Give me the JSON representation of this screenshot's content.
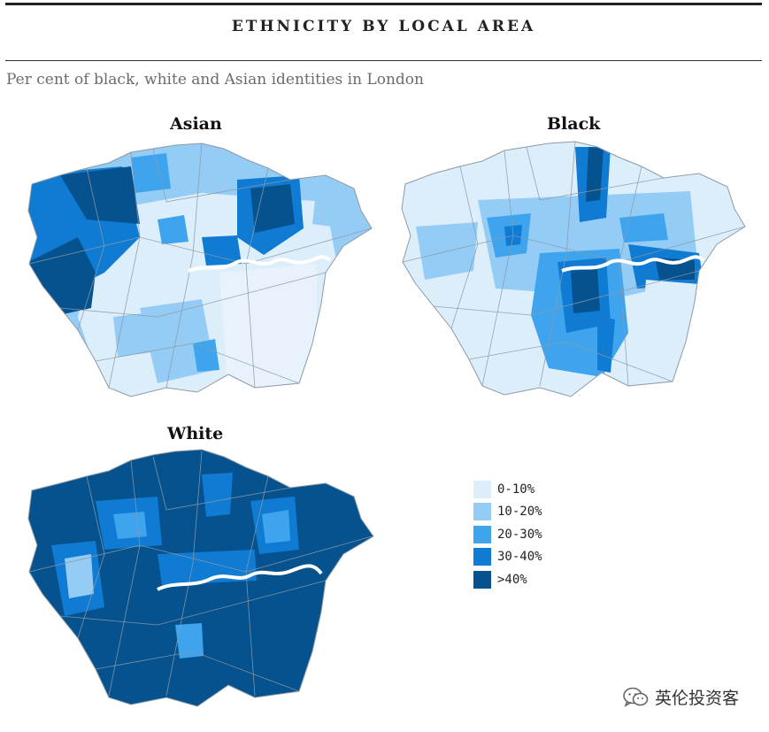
{
  "header": {
    "title": "ETHNICITY BY LOCAL AREA"
  },
  "subtitle": "Per cent of black, white and Asian identities in London",
  "maps": [
    {
      "title": "Asian",
      "icon": "london-choropleth-map"
    },
    {
      "title": "Black",
      "icon": "london-choropleth-map"
    },
    {
      "title": "White",
      "icon": "london-choropleth-map"
    }
  ],
  "legend": {
    "items": [
      {
        "label": "0-10%",
        "color": "#ddeefb"
      },
      {
        "label": "10-20%",
        "color": "#94ccf6"
      },
      {
        "label": "20-30%",
        "color": "#3ea4ee"
      },
      {
        "label": "30-40%",
        "color": "#0f7bd3"
      },
      {
        "label": ">40%",
        "color": "#05528f"
      }
    ]
  },
  "watermark": {
    "label": "英伦投资客",
    "icon": "wechat-icon"
  },
  "colors": {
    "river": "#ffffff",
    "boundary": "#8d9aa6"
  }
}
